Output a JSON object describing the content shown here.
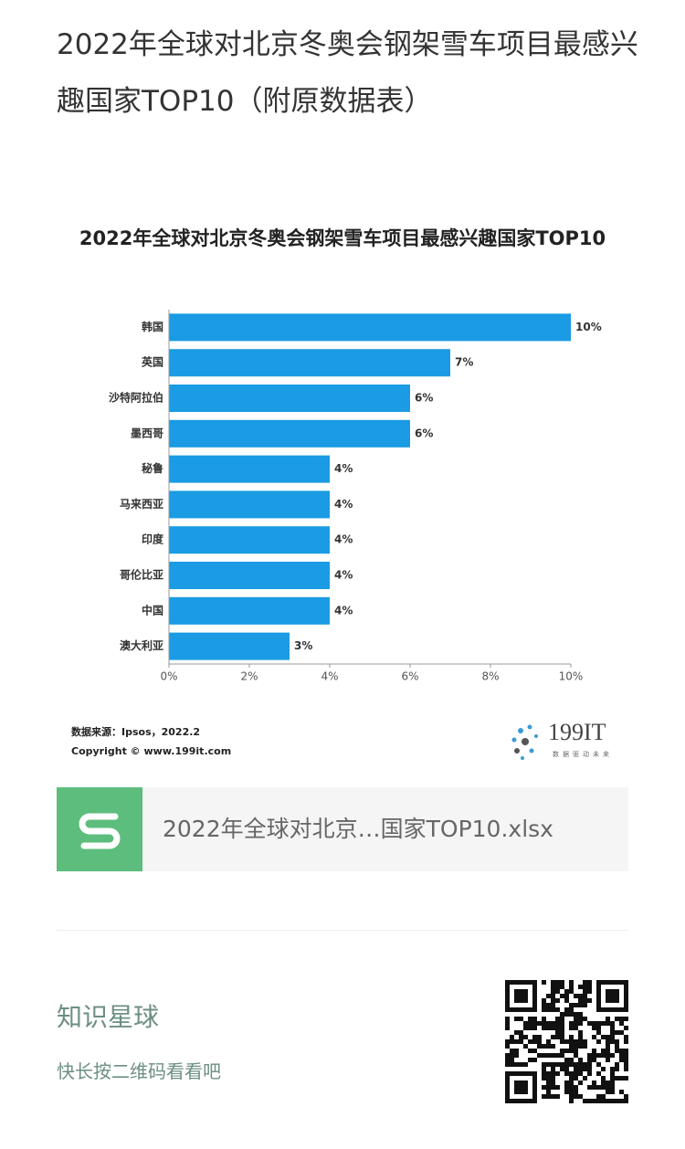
{
  "header": {
    "title": "2022年全球对北京冬奥会钢架雪车项目最感兴趣国家TOP10（附原数据表）"
  },
  "chart_data": {
    "type": "hbar",
    "title": "2022年全球对北京冬奥会钢架雪车项目最感兴趣国家TOP10",
    "categories": [
      "韩国",
      "英国",
      "沙特阿拉伯",
      "墨西哥",
      "秘鲁",
      "马来西亚",
      "印度",
      "哥伦比亚",
      "中国",
      "澳大利亚"
    ],
    "values": [
      10,
      7,
      6,
      6,
      4,
      4,
      4,
      4,
      4,
      3
    ],
    "value_labels": [
      "10%",
      "7%",
      "6%",
      "6%",
      "4%",
      "4%",
      "4%",
      "4%",
      "4%",
      "3%"
    ],
    "color": "#1a9be3",
    "xlim": [
      0,
      10
    ],
    "xticks": [
      {
        "value": 0,
        "label": "0%"
      },
      {
        "value": 2,
        "label": "2%"
      },
      {
        "value": 4,
        "label": "4%"
      },
      {
        "value": 6,
        "label": "6%"
      },
      {
        "value": 8,
        "label": "8%"
      },
      {
        "value": 10,
        "label": "10%"
      }
    ],
    "grid": false,
    "source": "数据来源：Ipsos，2022.2",
    "copyright": "Copyright © www.199it.com",
    "logo": "199IT",
    "logo_slogan": "数据驱动未来"
  },
  "attachment": {
    "file_name": "2022年全球对北京…国家TOP10.xlsx"
  },
  "footer": {
    "title": "知识星球",
    "subtitle": "快长按二维码看看吧"
  }
}
